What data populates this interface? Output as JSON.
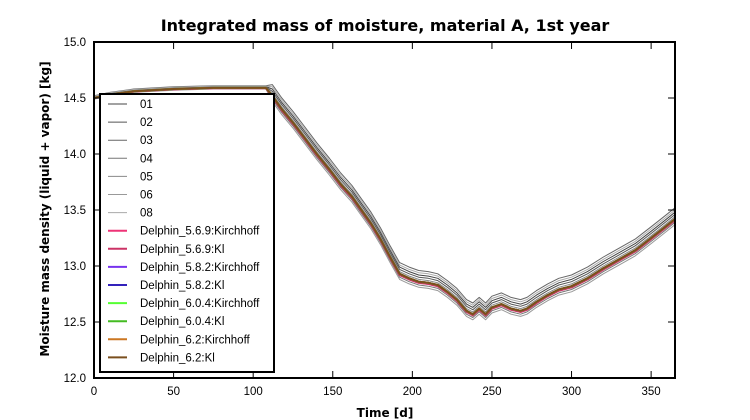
{
  "chart_data": {
    "type": "line",
    "title": "Integrated mass of moisture, material A, 1st year",
    "xlabel": "Time [d]",
    "ylabel": "Moisture mass density (liquid + vapor) [kg]",
    "xlim": [
      0,
      365
    ],
    "ylim": [
      12.0,
      15.0
    ],
    "xticks": [
      0,
      50,
      100,
      150,
      200,
      250,
      300,
      350
    ],
    "xtick_labels": [
      "0",
      "50",
      "100",
      "150",
      "200",
      "250",
      "300",
      "350"
    ],
    "yticks": [
      12.0,
      12.5,
      13.0,
      13.5,
      14.0,
      14.5,
      15.0
    ],
    "ytick_labels": [
      "12.0",
      "12.5",
      "13.0",
      "13.5",
      "14.0",
      "14.5",
      "15.0"
    ],
    "grid": false,
    "legend_position": "left",
    "x": [
      0,
      10,
      25,
      50,
      75,
      100,
      108,
      112,
      118,
      125,
      132,
      140,
      148,
      155,
      162,
      168,
      174,
      180,
      186,
      192,
      198,
      204,
      210,
      216,
      222,
      228,
      234,
      238,
      242,
      246,
      250,
      256,
      262,
      268,
      272,
      278,
      285,
      292,
      300,
      310,
      320,
      330,
      340,
      350,
      358,
      365
    ],
    "base_curve": [
      14.5,
      14.53,
      14.56,
      14.58,
      14.59,
      14.59,
      14.59,
      14.52,
      14.4,
      14.28,
      14.15,
      14.0,
      13.86,
      13.73,
      13.62,
      13.5,
      13.38,
      13.24,
      13.08,
      12.93,
      12.89,
      12.86,
      12.85,
      12.83,
      12.77,
      12.7,
      12.6,
      12.57,
      12.62,
      12.57,
      12.63,
      12.66,
      12.62,
      12.6,
      12.62,
      12.68,
      12.74,
      12.79,
      12.82,
      12.89,
      12.98,
      13.06,
      13.14,
      13.25,
      13.34,
      13.42
    ],
    "series": [
      {
        "name": "01",
        "color": "#444444",
        "offset": 0.06
      },
      {
        "name": "02",
        "color": "#555555",
        "offset": 0.04
      },
      {
        "name": "03",
        "color": "#666666",
        "offset": 0.1
      },
      {
        "name": "04",
        "color": "#777777",
        "offset": -0.03
      },
      {
        "name": "05",
        "color": "#888888",
        "offset": 0.02
      },
      {
        "name": "06",
        "color": "#999999",
        "offset": -0.05
      },
      {
        "name": "08",
        "color": "#aaaaaa",
        "offset": 0.08
      },
      {
        "name": "Delphin_5.6.9:Kirchhoff",
        "color": "#ee3377",
        "offset": -0.01
      },
      {
        "name": "Delphin_5.6.9:Kl",
        "color": "#cc3366",
        "offset": -0.01
      },
      {
        "name": "Delphin_5.8.2:Kirchhoff",
        "color": "#7733ee",
        "offset": 0.0
      },
      {
        "name": "Delphin_5.8.2:Kl",
        "color": "#3322bb",
        "offset": 0.0
      },
      {
        "name": "Delphin_6.0.4:Kirchhoff",
        "color": "#55ff33",
        "offset": 0.0
      },
      {
        "name": "Delphin_6.0.4:Kl",
        "color": "#44bb22",
        "offset": 0.0
      },
      {
        "name": "Delphin_6.2:Kirchhoff",
        "color": "#cc7722",
        "offset": 0.0
      },
      {
        "name": "Delphin_6.2:Kl",
        "color": "#7a4f1e",
        "offset": 0.0
      }
    ]
  }
}
